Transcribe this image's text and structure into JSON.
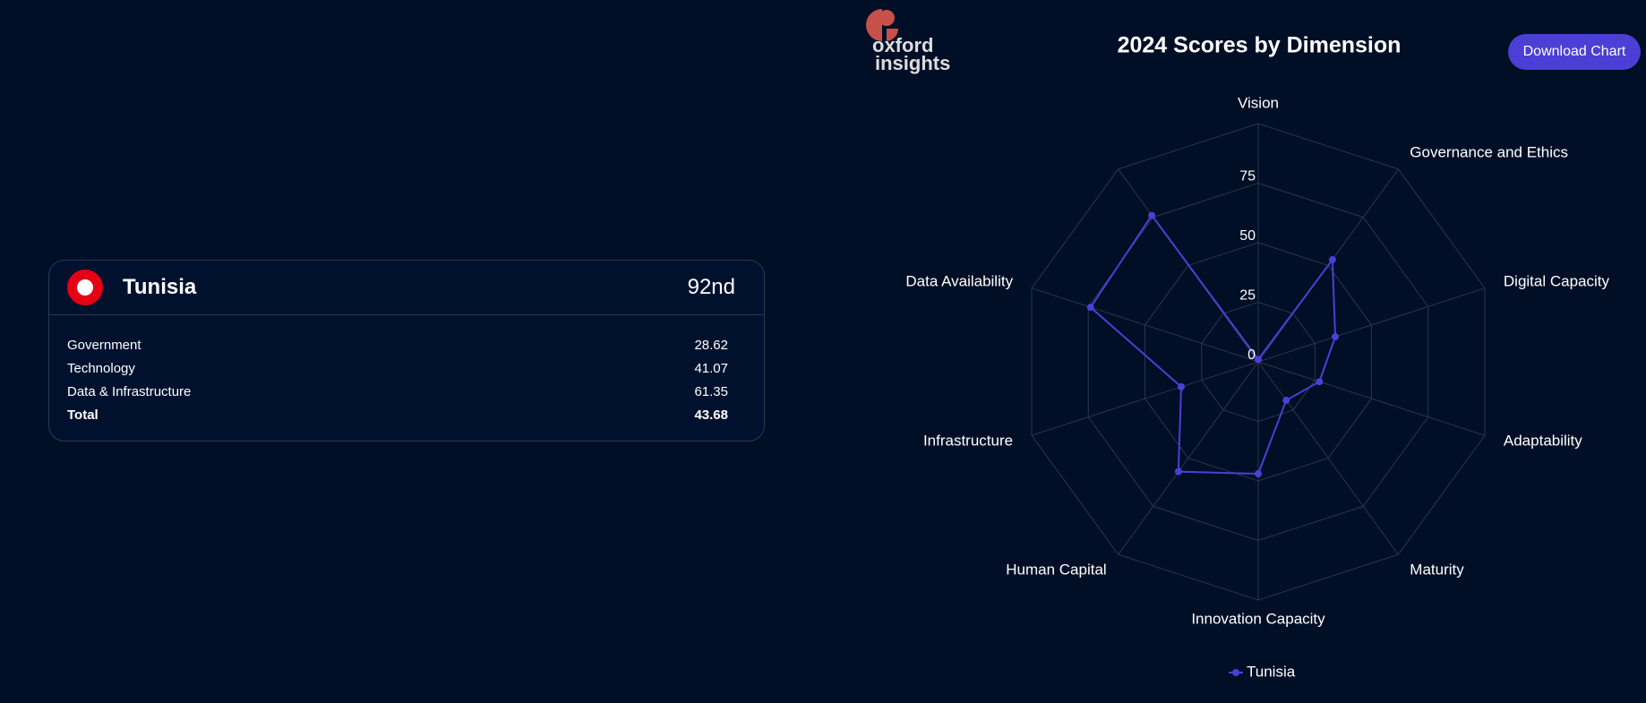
{
  "header": {
    "logo_top": "oxford",
    "logo_bottom": "insights",
    "button": "Download Chart"
  },
  "card": {
    "country": "Tunisia",
    "rank": "92nd",
    "rows": [
      {
        "label": "Government",
        "value": 28.62
      },
      {
        "label": "Technology",
        "value": 41.07
      },
      {
        "label": "Data & Infrastructure",
        "value": 61.35
      },
      {
        "label": "Total",
        "value": 43.68
      }
    ]
  },
  "chart_data": {
    "type": "radar",
    "title": "2024 Scores by Dimension",
    "categories": [
      "Vision",
      "Governance and Ethics",
      "Digital Capacity",
      "Adaptability",
      "Maturity",
      "Innovation Capacity",
      "Human Capital",
      "Infrastructure",
      "Data Availability",
      null
    ],
    "series": [
      {
        "name": "Tunisia",
        "color": "#4b3fd6",
        "values": [
          1,
          53,
          34,
          27,
          20,
          47,
          57,
          34,
          74,
          76
        ]
      }
    ],
    "rlim": [
      0,
      100
    ],
    "rticks": [
      0,
      25,
      50,
      75
    ],
    "grid": true,
    "legend": "bottom"
  }
}
